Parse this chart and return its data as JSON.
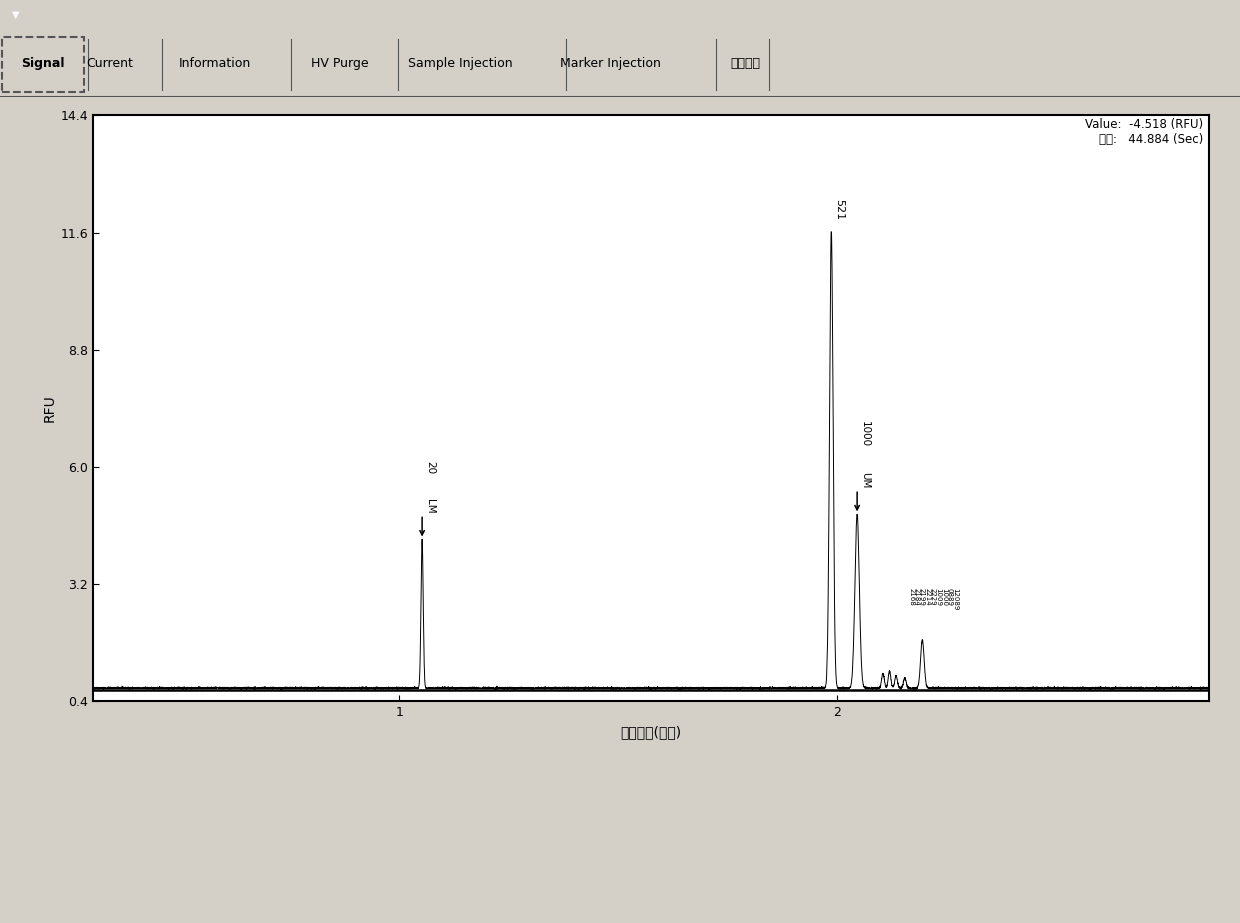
{
  "xlabel": "分析时间(分钟)",
  "ylabel": "RFU",
  "xlim": [
    0.3,
    2.85
  ],
  "ylim": [
    0.4,
    14.4
  ],
  "yticks": [
    0.4,
    3.2,
    6.0,
    8.8,
    11.6,
    14.4
  ],
  "xticks": [
    1,
    2
  ],
  "value_line1": "Value:  -4.518 (RFU)",
  "value_line2": "时间:   44.884 (Sec)",
  "tab_labels": [
    "Signal",
    "Current",
    "Information",
    "HV Purge",
    "Sample Injection",
    "Marker Injection",
    "片段比对"
  ],
  "bg_color": "#d4d0c8",
  "plot_bg": "#ffffff",
  "toolbar_bg": "#d4d0c8",
  "titlebar_bg": "#000000",
  "peak_lm_x": 1.052,
  "peak_lm_amp": 3.55,
  "peak_lm_sigma": 0.0025,
  "peak_521_x": 1.987,
  "peak_521_amp": 10.92,
  "peak_521_sigma": 0.004,
  "peak_um_x": 2.046,
  "peak_um_amp": 4.15,
  "peak_um_sigma": 0.005,
  "small_peaks": [
    {
      "x": 2.105,
      "amp": 0.35,
      "sigma": 0.003
    },
    {
      "x": 2.12,
      "amp": 0.4,
      "sigma": 0.003
    },
    {
      "x": 2.135,
      "amp": 0.3,
      "sigma": 0.003
    },
    {
      "x": 2.155,
      "amp": 0.25,
      "sigma": 0.003
    },
    {
      "x": 2.195,
      "amp": 1.15,
      "sigma": 0.004
    }
  ],
  "baseline_y": 0.72,
  "border_color": "#000000",
  "outer_border_color": "#808080"
}
